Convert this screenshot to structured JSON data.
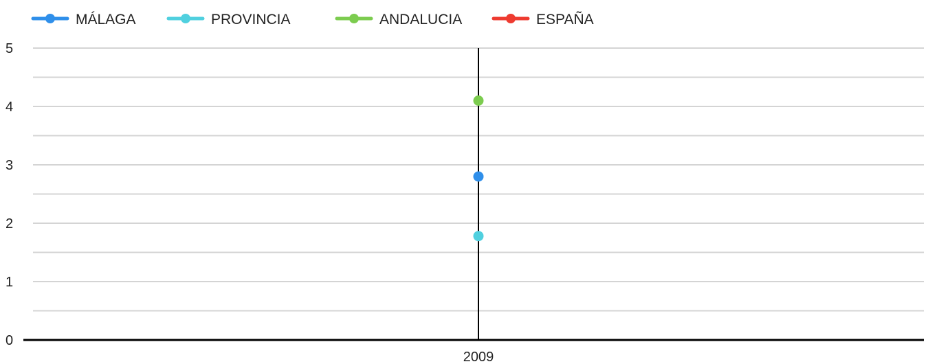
{
  "chart_data": {
    "type": "line",
    "title": "",
    "xlabel": "",
    "ylabel": "",
    "x": [
      "2009"
    ],
    "ylim": [
      0,
      5
    ],
    "y_ticks": [
      0,
      1,
      2,
      3,
      4,
      5
    ],
    "grid": true,
    "legend_position": "top-left",
    "series": [
      {
        "name": "MÁLAGA",
        "color": "#2f8fea",
        "values": [
          2.8
        ]
      },
      {
        "name": "PROVINCIA",
        "color": "#50d0df",
        "values": [
          1.78
        ]
      },
      {
        "name": "ANDALUCIA",
        "color": "#7ccc4f",
        "values": [
          4.1
        ]
      },
      {
        "name": "ESPAÑA",
        "color": "#ee3b30",
        "values": [
          null
        ]
      }
    ]
  }
}
